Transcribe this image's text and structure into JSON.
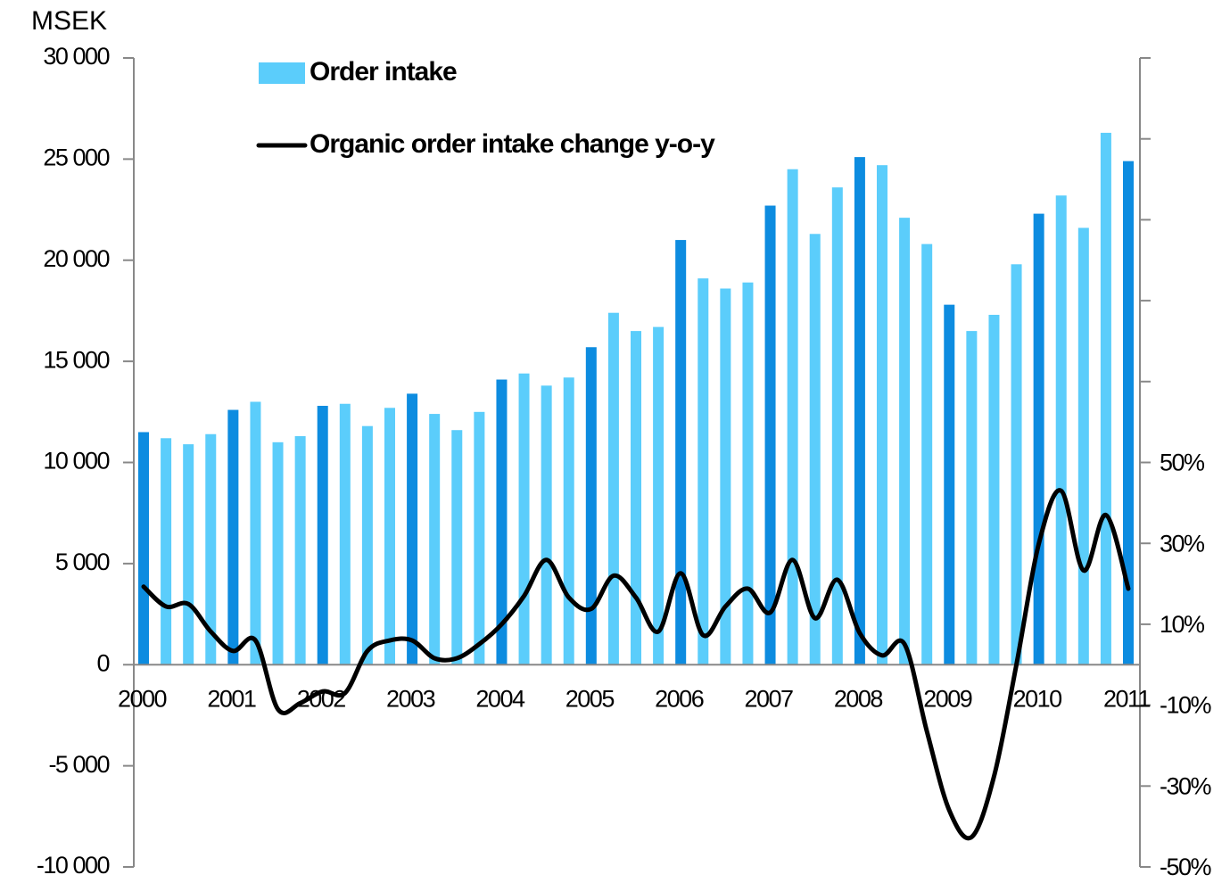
{
  "chart_data": {
    "type": "bar",
    "y_unit_label": "MSEK",
    "categories": [
      "2000",
      null,
      null,
      null,
      "2001",
      null,
      null,
      null,
      "2002",
      null,
      null,
      null,
      "2003",
      null,
      null,
      null,
      "2004",
      null,
      null,
      null,
      "2005",
      null,
      null,
      null,
      "2006",
      null,
      null,
      null,
      "2007",
      null,
      null,
      null,
      "2008",
      null,
      null,
      null,
      "2009",
      null,
      null,
      null,
      "2010",
      null,
      null,
      null,
      "2011"
    ],
    "series": [
      {
        "name": "Order intake",
        "type": "bar",
        "color": "#5bcdfb",
        "colors": [
          "#0d8ce0",
          "#5bcdfb",
          "#5bcdfb",
          "#5bcdfb",
          "#0d8ce0",
          "#5bcdfb",
          "#5bcdfb",
          "#5bcdfb",
          "#0d8ce0",
          "#5bcdfb",
          "#5bcdfb",
          "#5bcdfb",
          "#0d8ce0",
          "#5bcdfb",
          "#5bcdfb",
          "#5bcdfb",
          "#0d8ce0",
          "#5bcdfb",
          "#5bcdfb",
          "#5bcdfb",
          "#0d8ce0",
          "#5bcdfb",
          "#5bcdfb",
          "#5bcdfb",
          "#0d8ce0",
          "#5bcdfb",
          "#5bcdfb",
          "#5bcdfb",
          "#0d8ce0",
          "#5bcdfb",
          "#5bcdfb",
          "#5bcdfb",
          "#0d8ce0",
          "#5bcdfb",
          "#5bcdfb",
          "#5bcdfb",
          "#0d8ce0",
          "#5bcdfb",
          "#5bcdfb",
          "#5bcdfb",
          "#0d8ce0",
          "#5bcdfb",
          "#5bcdfb",
          "#5bcdfb",
          "#0d8ce0"
        ],
        "values": [
          11500,
          11200,
          10900,
          11400,
          12600,
          13000,
          11000,
          11300,
          12800,
          12900,
          11800,
          12700,
          13400,
          12400,
          11600,
          12500,
          14100,
          14400,
          13800,
          14200,
          15700,
          17400,
          16500,
          16700,
          21000,
          19100,
          18600,
          18900,
          22700,
          24500,
          21300,
          23600,
          25100,
          24700,
          22100,
          20800,
          17800,
          16500,
          17300,
          19800,
          22300,
          23200,
          21600,
          26300,
          24900
        ]
      },
      {
        "name": "Organic order intake change y-o-y",
        "type": "line",
        "axis": "y2",
        "color": "#000000",
        "values": [
          19.3,
          14.4,
          15,
          8.2,
          3.4,
          6,
          -11,
          -9.5,
          -6.6,
          -7,
          3.4,
          6,
          6,
          1.6,
          1.6,
          5.1,
          10,
          17,
          25.9,
          16.6,
          13.8,
          22,
          16.6,
          8.2,
          22.6,
          7.3,
          14.4,
          18.8,
          12.9,
          25.9,
          11.5,
          21,
          7.8,
          2.3,
          5.1,
          -16.5,
          -36,
          -42.6,
          -27.6,
          0,
          29.9,
          43,
          23.3,
          37,
          18.8
        ]
      }
    ],
    "ylim": [
      -10000,
      30000
    ],
    "yticks": [
      {
        "value": -10000,
        "label": "-10 000"
      },
      {
        "value": -5000,
        "label": "-5 000"
      },
      0,
      {
        "value": 5000,
        "label": "5 000"
      },
      {
        "value": 10000,
        "label": "10 000"
      },
      {
        "value": 15000,
        "label": "15 000"
      },
      {
        "value": 20000,
        "label": "20 000"
      },
      {
        "value": 25000,
        "label": "25 000"
      },
      {
        "value": 30000,
        "label": "30 000"
      }
    ],
    "y2lim": [
      -50,
      150
    ],
    "y2ticks": [
      {
        "value": -50,
        "label": "-50%"
      },
      {
        "value": -30,
        "label": "-30%"
      },
      {
        "value": -10,
        "label": "-10%"
      },
      {
        "value": 10,
        "label": "10%"
      },
      {
        "value": 30,
        "label": "30%"
      },
      {
        "value": 50,
        "label": "50%"
      }
    ],
    "y2minor_ticks": [
      70,
      90,
      110,
      130,
      150
    ],
    "legend": "upper left"
  }
}
